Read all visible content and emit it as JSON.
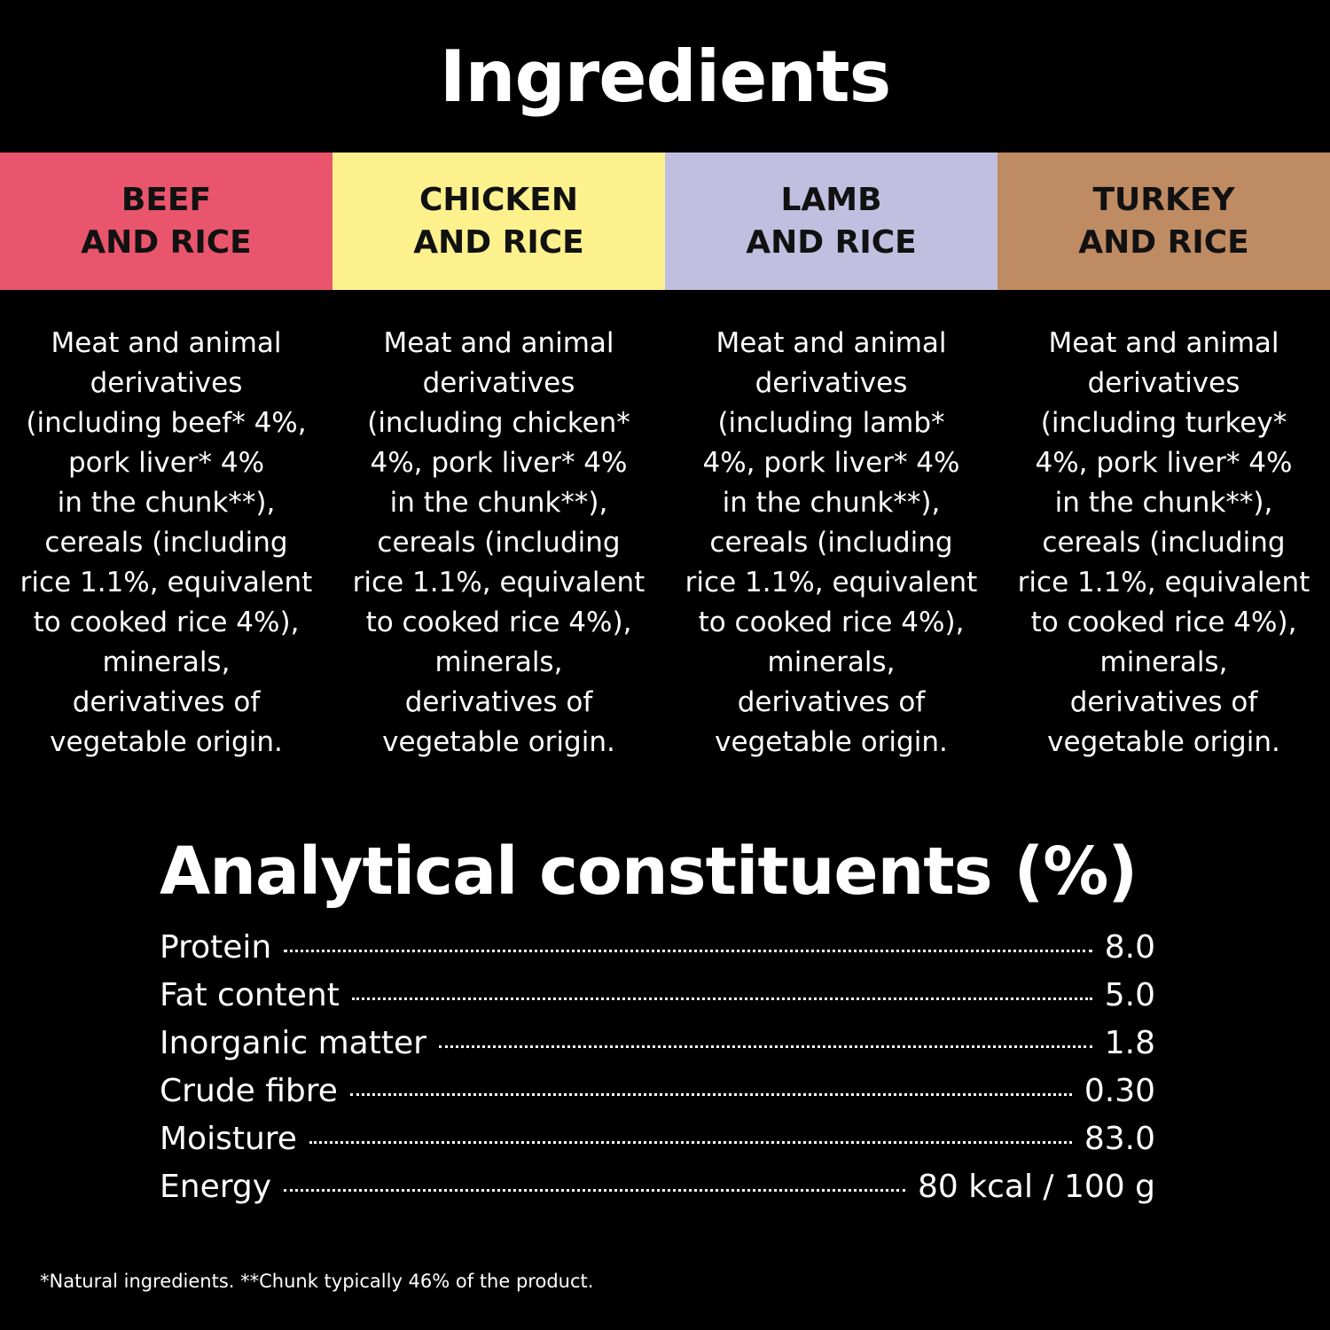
{
  "title": "Ingredients",
  "columns": [
    {
      "heading": [
        "BEEF",
        "AND RICE"
      ],
      "color": "#e9556c",
      "text": [
        "Meat and animal",
        "derivatives",
        "(including beef* 4%,",
        "pork liver* 4%",
        "in the chunk**),",
        "cereals (including",
        "rice 1.1%, equivalent",
        "to cooked rice 4%),",
        "minerals,",
        "derivatives of",
        "vegetable origin."
      ]
    },
    {
      "heading": [
        "CHICKEN",
        "AND RICE"
      ],
      "color": "#fdf18e",
      "text": [
        "Meat and animal",
        "derivatives",
        "(including chicken*",
        "4%, pork liver* 4%",
        "in the chunk**),",
        "cereals (including",
        "rice 1.1%, equivalent",
        "to cooked rice 4%),",
        "minerals,",
        "derivatives of",
        "vegetable origin."
      ]
    },
    {
      "heading": [
        "LAMB",
        "AND RICE"
      ],
      "color": "#c1bfe0",
      "text": [
        "Meat and animal",
        "derivatives",
        "(including lamb*",
        "4%, pork liver* 4%",
        "in the chunk**),",
        "cereals (including",
        "rice 1.1%, equivalent",
        "to cooked rice 4%),",
        "minerals,",
        "derivatives of",
        "vegetable origin."
      ]
    },
    {
      "heading": [
        "TURKEY",
        "AND RICE"
      ],
      "color": "#bf8b63",
      "text": [
        "Meat and animal",
        "derivatives",
        "(including turkey*",
        "4%, pork liver* 4%",
        "in the chunk**),",
        "cereals (including",
        "rice 1.1%, equivalent",
        "to cooked rice 4%),",
        "minerals,",
        "derivatives of",
        "vegetable origin."
      ]
    }
  ],
  "analysis": {
    "title": "Analytical constituents (%)",
    "rows": [
      {
        "label": "Protein",
        "value": "8.0"
      },
      {
        "label": "Fat content",
        "value": "5.0"
      },
      {
        "label": "Inorganic matter",
        "value": "1.8"
      },
      {
        "label": "Crude fibre",
        "value": "0.30"
      },
      {
        "label": "Moisture",
        "value": "83.0"
      },
      {
        "label": "Energy",
        "value": "80 kcal / 100 g"
      }
    ]
  },
  "footnote": "*Natural ingredients. **Chunk typically 46% of the product."
}
